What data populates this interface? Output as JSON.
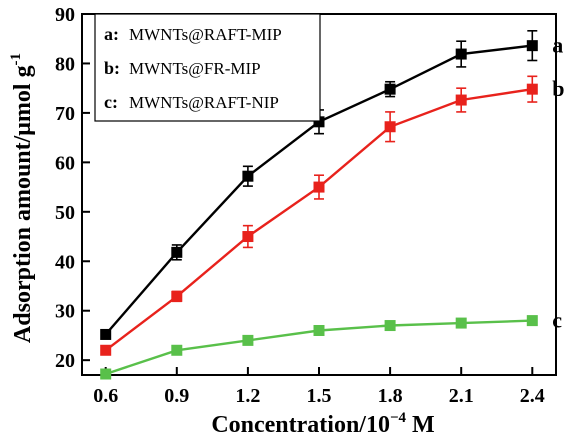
{
  "chart_data": {
    "type": "line",
    "xlabel_main": "Concentration/10",
    "xlabel_exp": "−4",
    "xlabel_unit": " M",
    "ylabel": "Adsorption amount/μmol g",
    "ylabel_exp": "-1",
    "x": [
      0.6,
      0.9,
      1.2,
      1.5,
      1.8,
      2.1,
      2.4
    ],
    "x_tick_labels": [
      "0.6",
      "0.9",
      "1.2",
      "1.5",
      "1.8",
      "2.1",
      "2.4"
    ],
    "y_ticks": [
      20,
      30,
      40,
      50,
      60,
      70,
      80,
      90
    ],
    "xlim": [
      0.5,
      2.5
    ],
    "ylim": [
      17,
      90
    ],
    "grid": false,
    "legend_position": "top-left",
    "series": [
      {
        "key": "a",
        "name": "MWNTs@RAFT-MIP",
        "color": "#000000",
        "values": [
          25.2,
          41.8,
          57.2,
          68.2,
          74.8,
          81.9,
          83.6
        ],
        "errors": [
          0,
          1.5,
          2.0,
          2.4,
          1.5,
          2.6,
          3.0
        ]
      },
      {
        "key": "b",
        "name": "MWNTs@FR-MIP",
        "color": "#e8221c",
        "values": [
          22.0,
          32.9,
          45.0,
          55.0,
          67.2,
          72.6,
          74.8
        ],
        "errors": [
          0,
          1.0,
          2.2,
          2.4,
          3.0,
          2.4,
          2.6
        ]
      },
      {
        "key": "c",
        "name": "MWNTs@RAFT-NIP",
        "color": "#59c04a",
        "values": [
          17.2,
          22.0,
          24.0,
          26.0,
          27.0,
          27.5,
          28.0
        ],
        "errors": [
          0,
          0,
          0,
          0,
          0,
          0,
          0
        ]
      }
    ]
  }
}
